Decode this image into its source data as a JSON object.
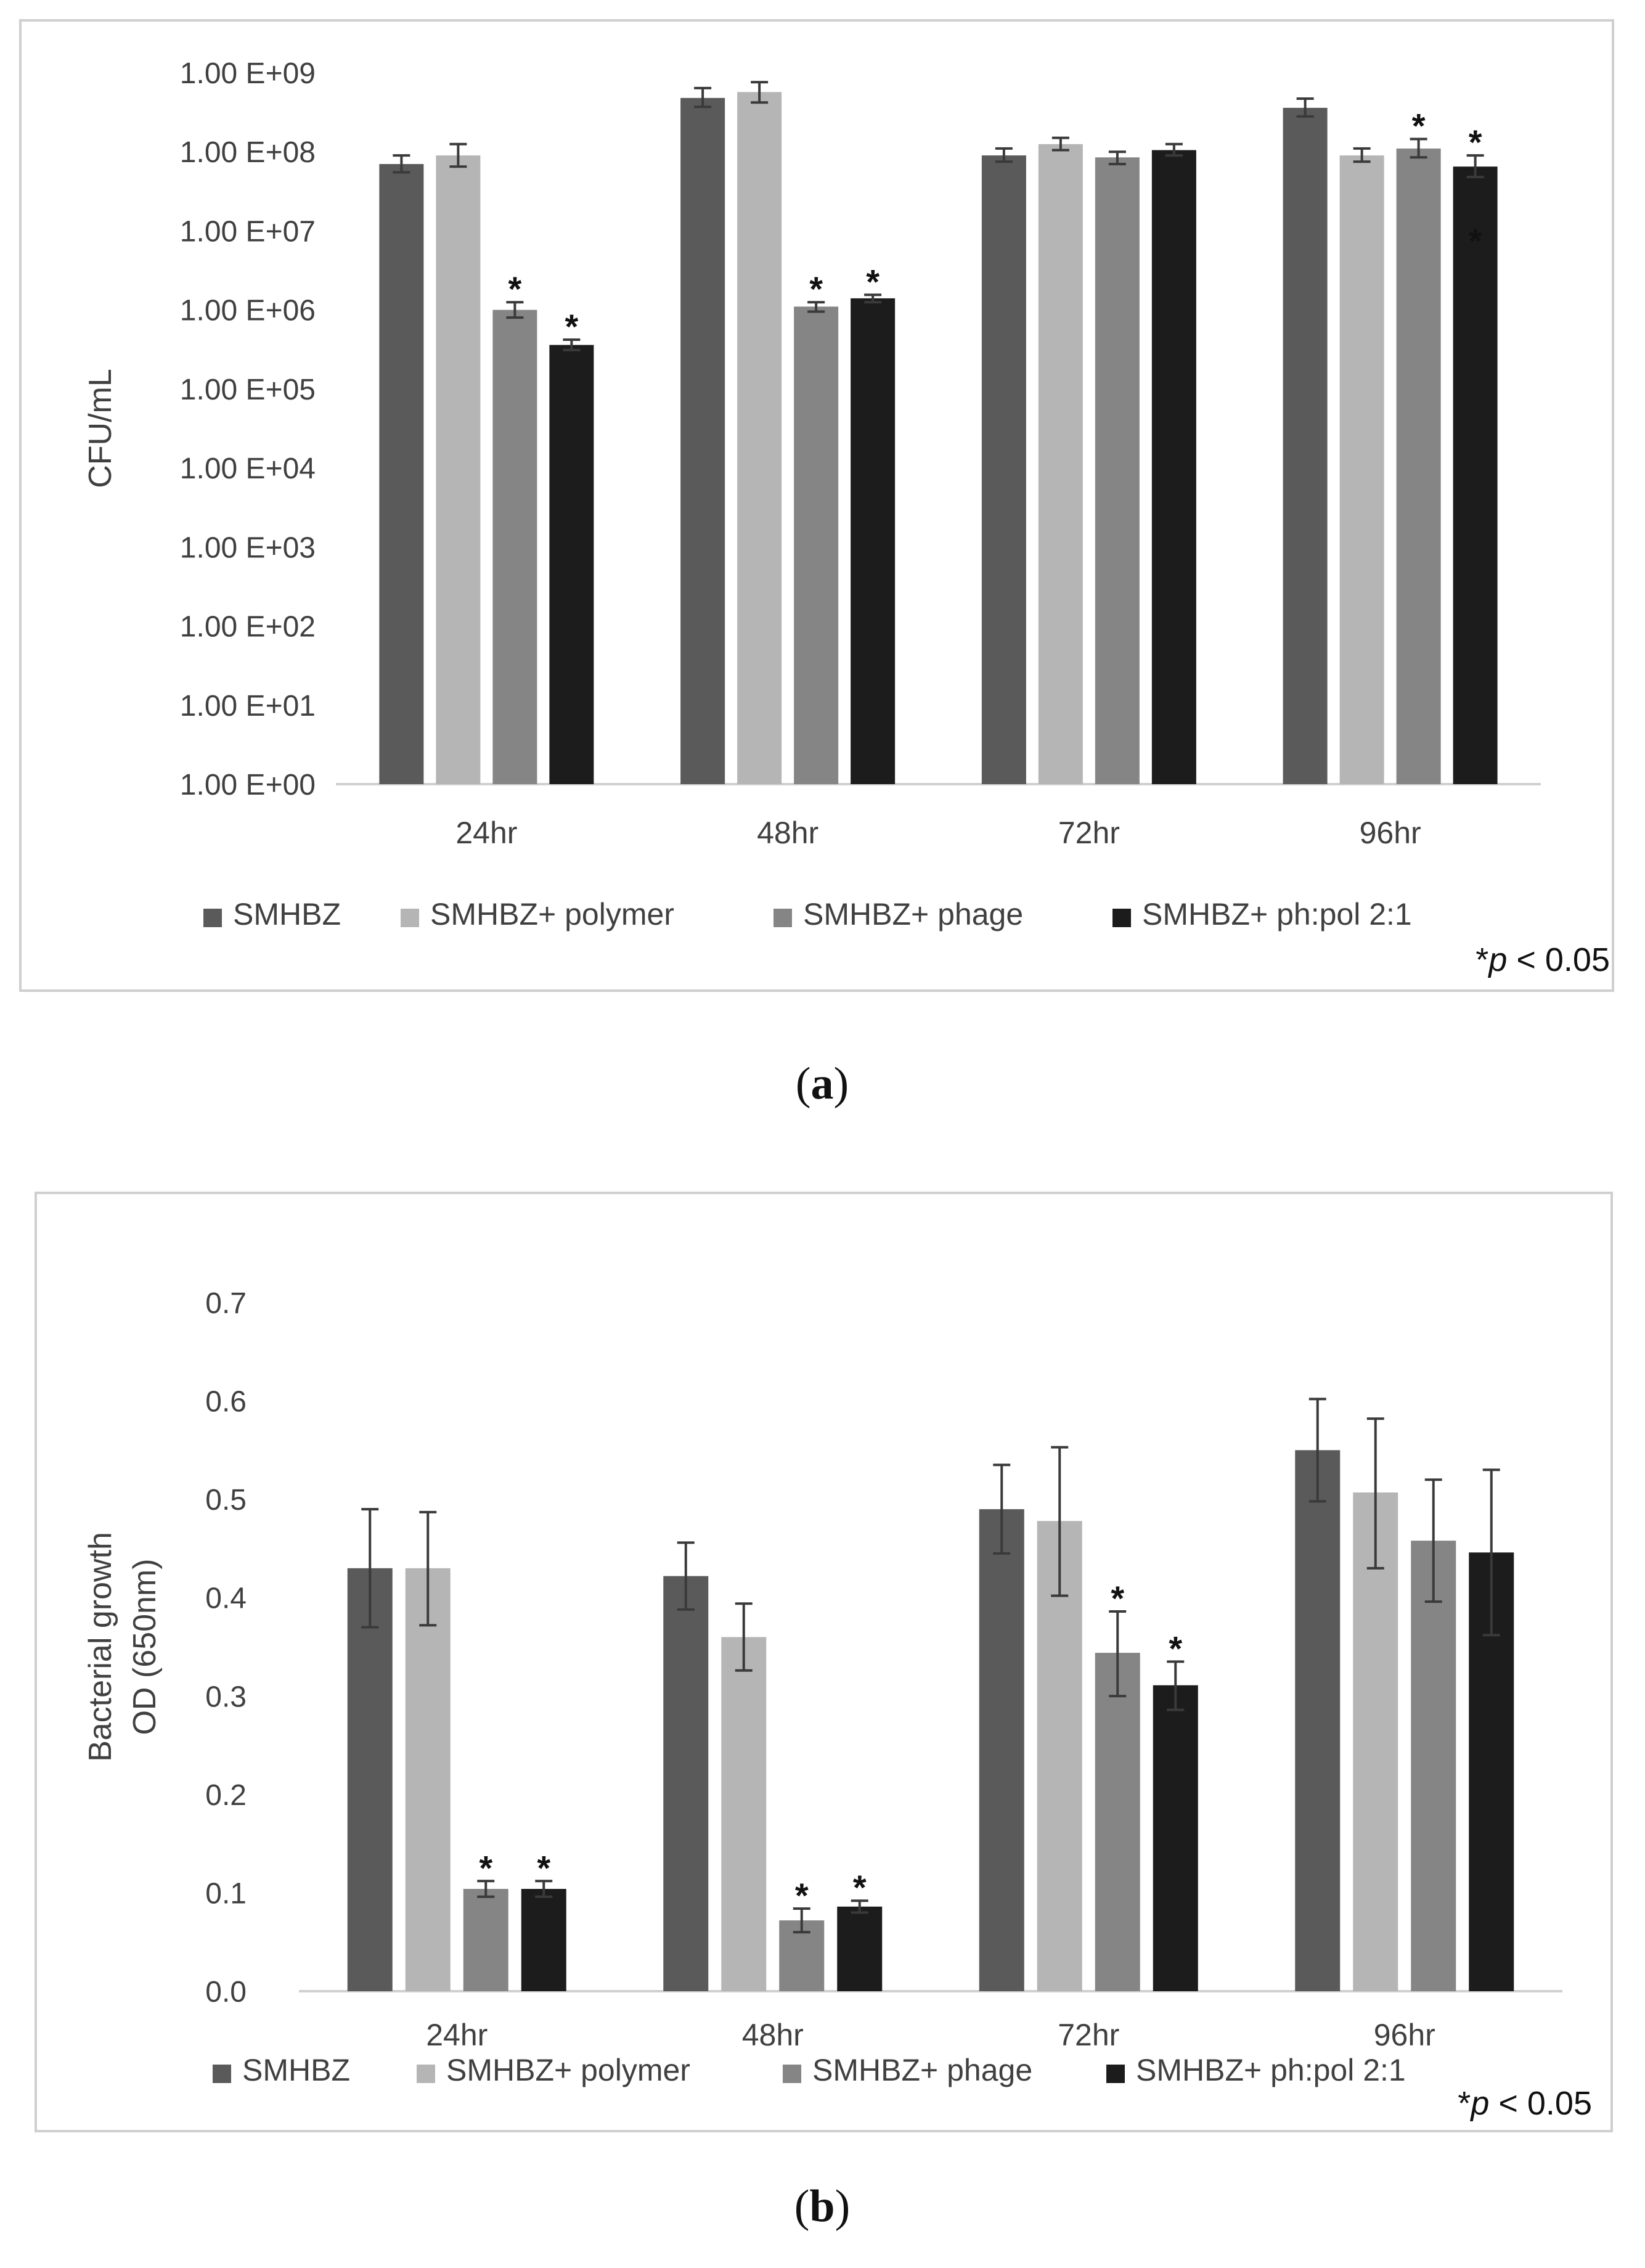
{
  "series_colors": [
    "#5a5a5a",
    "#b5b5b5",
    "#858585",
    "#1c1c1c"
  ],
  "significance_note": {
    "prefix": "*",
    "italic": "p",
    "suffix": " < 0.05"
  },
  "chart_data": [
    {
      "type": "bar",
      "scale": "log",
      "caption": "(a)",
      "caption_letter": "a",
      "title": "",
      "xlabel": "",
      "ylabel": "CFU/mL",
      "ylim": [
        1,
        1000000000
      ],
      "yticks": [
        1,
        10,
        100,
        1000,
        10000,
        100000,
        1000000,
        10000000,
        100000000,
        1000000000
      ],
      "ytick_labels": [
        "1.00 E+00",
        "1.00 E+01",
        "1.00 E+02",
        "1.00 E+03",
        "1.00 E+04",
        "1.00 E+05",
        "1.00 E+06",
        "1.00 E+07",
        "1.00 E+08",
        "1.00 E+09"
      ],
      "categories": [
        "24hr",
        "48hr",
        "72hr",
        "96hr"
      ],
      "series": [
        {
          "name": "SMHBZ",
          "values": [
            70000000,
            480000000,
            90000000,
            360000000
          ],
          "err_low": [
            55000000,
            370000000,
            75000000,
            280000000
          ],
          "err_high": [
            90000000,
            640000000,
            110000000,
            470000000
          ]
        },
        {
          "name": "SMHBZ+ polymer",
          "values": [
            90000000,
            570000000,
            125000000,
            90000000
          ],
          "err_low": [
            65000000,
            420000000,
            105000000,
            75000000
          ],
          "err_high": [
            125000000,
            760000000,
            150000000,
            110000000
          ]
        },
        {
          "name": "SMHBZ+ phage",
          "values": [
            1000000,
            1100000,
            85000000,
            110000000
          ],
          "err_low": [
            800000,
            950000,
            70000000,
            85000000
          ],
          "err_high": [
            1250000,
            1250000,
            100000000,
            145000000
          ]
        },
        {
          "name": "SMHBZ+ ph:pol 2:1",
          "values": [
            360000,
            1400000,
            105000000,
            65000000
          ],
          "err_low": [
            310000,
            1250000,
            90000000,
            48000000
          ],
          "err_high": [
            420000,
            1550000,
            125000000,
            90000000
          ]
        }
      ],
      "significance": [
        {
          "category": 0,
          "series": 2,
          "symbol": "*"
        },
        {
          "category": 0,
          "series": 3,
          "symbol": "*"
        },
        {
          "category": 1,
          "series": 2,
          "symbol": "*"
        },
        {
          "category": 1,
          "series": 3,
          "symbol": "*"
        },
        {
          "category": 3,
          "series": 2,
          "symbol": "*"
        },
        {
          "category": 3,
          "series": 3,
          "symbol": "*"
        },
        {
          "category": 3,
          "series": 3,
          "symbol": "*",
          "inside": true
        }
      ]
    },
    {
      "type": "bar",
      "scale": "linear",
      "caption": "(b)",
      "caption_letter": "b",
      "title": "",
      "xlabel": "",
      "ylabel": [
        "Bacterial growth",
        "OD (650nm)"
      ],
      "ylim": [
        0,
        0.7
      ],
      "yticks": [
        0,
        0.1,
        0.2,
        0.3,
        0.4,
        0.5,
        0.6,
        0.7
      ],
      "ytick_labels": [
        "0.0",
        "0.1",
        "0.2",
        "0.3",
        "0.4",
        "0.5",
        "0.6",
        "0.7"
      ],
      "categories": [
        "24hr",
        "48hr",
        "72hr",
        "96hr"
      ],
      "series": [
        {
          "name": "SMHBZ",
          "values": [
            0.43,
            0.422,
            0.49,
            0.55
          ],
          "err_low": [
            0.37,
            0.388,
            0.445,
            0.498
          ],
          "err_high": [
            0.49,
            0.456,
            0.535,
            0.602
          ]
        },
        {
          "name": "SMHBZ+ polymer",
          "values": [
            0.43,
            0.36,
            0.478,
            0.507
          ],
          "err_low": [
            0.372,
            0.326,
            0.402,
            0.43
          ],
          "err_high": [
            0.487,
            0.394,
            0.553,
            0.582
          ]
        },
        {
          "name": "SMHBZ+ phage",
          "values": [
            0.104,
            0.072,
            0.344,
            0.458
          ],
          "err_low": [
            0.096,
            0.06,
            0.3,
            0.396
          ],
          "err_high": [
            0.112,
            0.084,
            0.386,
            0.52
          ]
        },
        {
          "name": "SMHBZ+ ph:pol 2:1",
          "values": [
            0.104,
            0.086,
            0.311,
            0.446
          ],
          "err_low": [
            0.096,
            0.08,
            0.286,
            0.362
          ],
          "err_high": [
            0.112,
            0.092,
            0.335,
            0.53
          ]
        }
      ],
      "significance": [
        {
          "category": 0,
          "series": 2,
          "symbol": "*"
        },
        {
          "category": 0,
          "series": 3,
          "symbol": "*"
        },
        {
          "category": 1,
          "series": 2,
          "symbol": "*"
        },
        {
          "category": 1,
          "series": 3,
          "symbol": "*"
        },
        {
          "category": 2,
          "series": 2,
          "symbol": "*"
        },
        {
          "category": 2,
          "series": 3,
          "symbol": "*"
        }
      ]
    }
  ]
}
